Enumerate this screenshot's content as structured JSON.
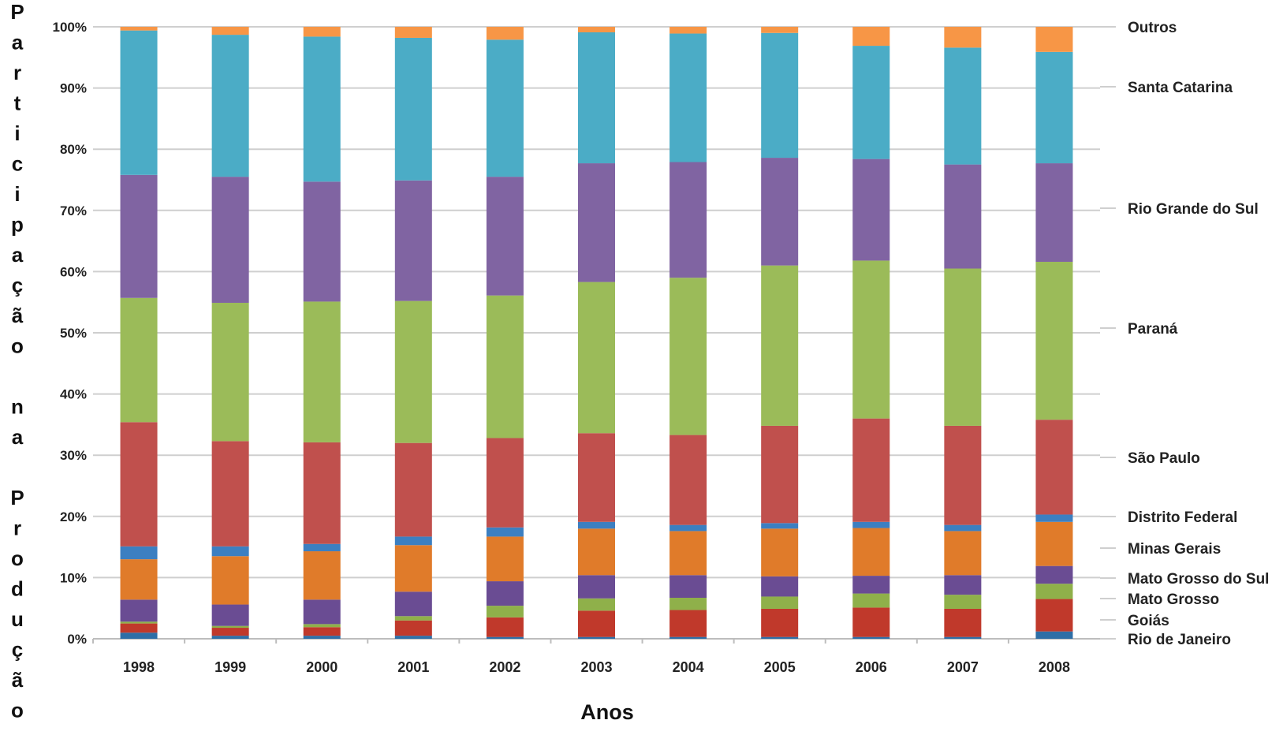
{
  "chart_data": {
    "type": "bar",
    "stacked": true,
    "title": "",
    "xlabel": "Anos",
    "ylabel": "Participação na Produção",
    "ylim": [
      0,
      100
    ],
    "yticks": [
      "0%",
      "10%",
      "20%",
      "30%",
      "40%",
      "50%",
      "60%",
      "70%",
      "80%",
      "90%",
      "100%"
    ],
    "grid": true,
    "legend_position": "right",
    "categories": [
      "1998",
      "1999",
      "2000",
      "2001",
      "2002",
      "2003",
      "2004",
      "2005",
      "2006",
      "2007",
      "2008"
    ],
    "series": [
      {
        "name": "Rio de Janeiro",
        "color": "#2e6ea6",
        "values": [
          1.0,
          0.5,
          0.5,
          0.5,
          0.3,
          0.3,
          0.3,
          0.3,
          0.3,
          0.3,
          1.2
        ]
      },
      {
        "name": "Goiás",
        "color": "#c0392b",
        "values": [
          1.5,
          1.3,
          1.4,
          2.5,
          3.2,
          4.3,
          4.4,
          4.6,
          4.8,
          4.6,
          5.3
        ]
      },
      {
        "name": "Mato Grosso",
        "color": "#8fb04a",
        "values": [
          0.3,
          0.3,
          0.5,
          0.7,
          1.9,
          2.0,
          2.0,
          2.0,
          2.3,
          2.3,
          2.5
        ]
      },
      {
        "name": "Mato Grosso do Sul",
        "color": "#6a4c93",
        "values": [
          3.6,
          3.5,
          4.0,
          4.0,
          4.0,
          3.8,
          3.7,
          3.3,
          2.9,
          3.2,
          2.9
        ]
      },
      {
        "name": "Minas Gerais",
        "color": "#e07b2a",
        "values": [
          6.6,
          7.9,
          7.9,
          7.6,
          7.3,
          7.6,
          7.2,
          7.8,
          7.8,
          7.2,
          7.2
        ]
      },
      {
        "name": "Distrito Federal",
        "color": "#3c7fc1",
        "values": [
          2.1,
          1.6,
          1.2,
          1.4,
          1.5,
          1.1,
          1.0,
          0.9,
          1.0,
          1.0,
          1.2
        ]
      },
      {
        "name": "São Paulo",
        "color": "#c0504d",
        "values": [
          20.3,
          17.2,
          16.6,
          15.3,
          14.6,
          14.5,
          14.7,
          15.9,
          16.9,
          16.2,
          15.5
        ]
      },
      {
        "name": "Paraná",
        "color": "#9bbb59",
        "values": [
          20.3,
          22.6,
          23.0,
          23.2,
          23.3,
          24.7,
          25.7,
          26.2,
          25.8,
          25.7,
          25.8
        ]
      },
      {
        "name": "Rio Grande do Sul",
        "color": "#8064a2",
        "values": [
          20.1,
          20.6,
          19.6,
          19.7,
          19.4,
          19.4,
          18.9,
          17.6,
          16.6,
          17.0,
          16.1
        ]
      },
      {
        "name": "Santa Catarina",
        "color": "#4bacc6",
        "values": [
          23.6,
          23.2,
          23.7,
          23.3,
          22.4,
          21.4,
          21.0,
          20.4,
          18.5,
          19.1,
          18.2
        ]
      },
      {
        "name": "Outros",
        "color": "#f79646",
        "values": [
          0.6,
          1.3,
          1.6,
          1.8,
          2.1,
          0.9,
          1.1,
          1.0,
          3.1,
          3.4,
          4.1
        ]
      }
    ]
  }
}
